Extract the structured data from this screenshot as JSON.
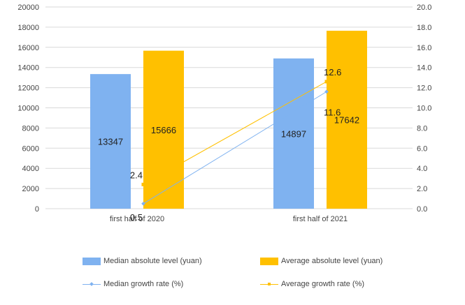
{
  "chart_data": {
    "type": "bar",
    "categories": [
      "first half of 2020",
      "first half of 2021"
    ],
    "series": [
      {
        "name": "Median absolute level (yuan)",
        "kind": "bar",
        "axis": "left",
        "color": "#7FB2F0",
        "values": [
          13347,
          14897
        ],
        "labels": [
          "13347",
          "14897"
        ]
      },
      {
        "name": "Average absolute level (yuan)",
        "kind": "bar",
        "axis": "left",
        "color": "#FFC000",
        "values": [
          15666,
          17642
        ],
        "labels": [
          "15666",
          "17642"
        ]
      },
      {
        "name": "Median growth rate (%)",
        "kind": "line",
        "axis": "right",
        "marker": "diamond",
        "color": "#7FB2F0",
        "values": [
          0.5,
          11.6
        ],
        "labels": [
          "0.5",
          "11.6"
        ]
      },
      {
        "name": "Average growth rate (%)",
        "kind": "line",
        "axis": "right",
        "marker": "square",
        "color": "#FFC000",
        "values": [
          2.4,
          12.6
        ],
        "labels": [
          "2.4",
          "12.6"
        ]
      }
    ],
    "y_left": {
      "min": 0,
      "max": 20000,
      "ticks": [
        "0",
        "2000",
        "4000",
        "6000",
        "8000",
        "10000",
        "12000",
        "14000",
        "16000",
        "18000",
        "20000"
      ]
    },
    "y_right": {
      "min": 0,
      "max": 20,
      "ticks": [
        "0.0",
        "2.0",
        "4.0",
        "6.0",
        "8.0",
        "10.0",
        "12.0",
        "14.0",
        "16.0",
        "18.0",
        "20.0"
      ]
    },
    "gridlines": true,
    "legend_position": "bottom"
  },
  "legend": {
    "median_level": "Median absolute level (yuan)",
    "average_level": "Average absolute level (yuan)",
    "median_rate": "Median growth rate (%)",
    "average_rate": "Average growth rate (%)"
  },
  "colors": {
    "median": "#7FB2F0",
    "average": "#FFC000",
    "grid": "#D9D9D9"
  }
}
